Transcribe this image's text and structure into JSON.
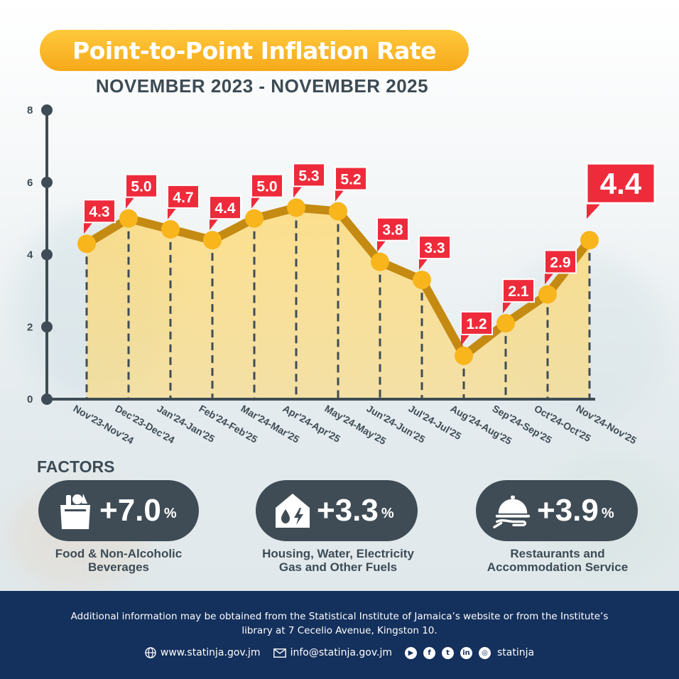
{
  "title": "Point-to-Point Inflation Rate",
  "subtitle": "NOVEMBER 2023 - NOVEMBER 2025",
  "chart_data": {
    "type": "line",
    "title": "Point-to-Point Inflation Rate",
    "subtitle": "NOVEMBER 2023 - NOVEMBER 2025",
    "categories": [
      "Nov'23-Nov'24",
      "Dec'23-Dec'24",
      "Jan'24-Jan'25",
      "Feb'24-Feb'25",
      "Mar'24-Mar'25",
      "Apr'24-Apr'25",
      "May'24-May'25",
      "Jun'24-Jun'25",
      "Jul'24-Jul'25",
      "Aug'24-Aug'25",
      "Sep'24-Sep'25",
      "Oct'24-Oct'25",
      "Nov'24-Nov'25"
    ],
    "values": [
      4.3,
      5.0,
      4.7,
      4.4,
      5.0,
      5.3,
      5.2,
      3.8,
      3.3,
      1.2,
      2.1,
      2.9,
      4.4
    ],
    "value_labels": [
      "4.3",
      "5.0",
      "4.7",
      "4.4",
      "5.0",
      "5.3",
      "5.2",
      "3.8",
      "3.3",
      "1.2",
      "2.1",
      "2.9",
      "4.4"
    ],
    "yticks": [
      0,
      2,
      4,
      6,
      8
    ],
    "ylim": [
      0,
      8
    ],
    "grid": false,
    "legend": "none",
    "colors": {
      "line": "#c48a12",
      "marker": "#f8b51c",
      "label": "#ee2b3b",
      "area": "#ffd76a",
      "axis": "#3f4c55"
    }
  },
  "factors": {
    "title": "FACTORS",
    "items": [
      {
        "icon": "grocery-bag-icon",
        "value": "+7.0",
        "unit": "%",
        "label_lines": [
          "Food & Non-Alcoholic",
          "Beverages"
        ]
      },
      {
        "icon": "house-utilities-icon",
        "value": "+3.3",
        "unit": "%",
        "label_lines": [
          "Housing, Water, Electricity",
          "Gas and Other Fuels"
        ]
      },
      {
        "icon": "food-service-cloche-icon",
        "value": "+3.9",
        "unit": "%",
        "label_lines": [
          "Restaurants and",
          "Accommodation Service"
        ]
      }
    ]
  },
  "footer": {
    "text_line1": "Additional information may be obtained from the Statistical Institute of Jamaica’s website or from the Institute’s",
    "text_line2": "library at 7 Cecelio Avenue, Kingston 10.",
    "website": "www.statinja.gov.jm",
    "email": "info@statinja.gov.jm",
    "social_handle": "statinja",
    "social_icons": [
      "youtube-icon",
      "facebook-icon",
      "twitter-icon",
      "linkedin-icon",
      "instagram-icon"
    ]
  }
}
